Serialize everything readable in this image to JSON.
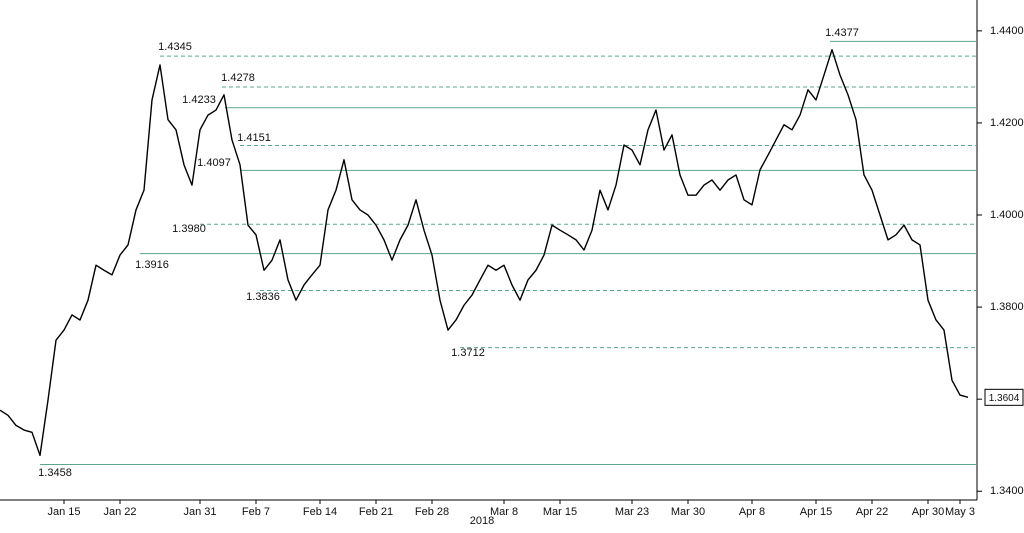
{
  "chart_data": {
    "type": "line",
    "xlabel": "2018",
    "categories": [
      null,
      null,
      null,
      null,
      null,
      null,
      null,
      null,
      "Jan 15",
      null,
      null,
      null,
      null,
      null,
      null,
      "Jan 22",
      null,
      null,
      null,
      null,
      null,
      null,
      null,
      null,
      null,
      "Jan 31",
      null,
      null,
      null,
      null,
      null,
      null,
      "Feb 7",
      null,
      null,
      null,
      null,
      null,
      null,
      null,
      "Feb 14",
      null,
      null,
      null,
      null,
      null,
      null,
      "Feb 21",
      null,
      null,
      null,
      null,
      null,
      null,
      "Feb 28",
      null,
      null,
      null,
      null,
      null,
      null,
      null,
      null,
      "Mar 8",
      null,
      null,
      null,
      null,
      null,
      null,
      "Mar 15",
      null,
      null,
      null,
      null,
      null,
      null,
      null,
      null,
      "Mar 23",
      null,
      null,
      null,
      null,
      null,
      null,
      "Mar 30",
      null,
      null,
      null,
      null,
      null,
      null,
      null,
      "Apr 8",
      null,
      null,
      null,
      null,
      null,
      null,
      null,
      "Apr 15",
      null,
      null,
      null,
      null,
      null,
      null,
      "Apr 22",
      null,
      null,
      null,
      null,
      null,
      null,
      "Apr 30",
      null,
      null,
      null,
      "May 3",
      null
    ],
    "series": [
      {
        "color": "#000000",
        "values": [
          1.3576,
          1.3565,
          1.3543,
          1.3533,
          1.3528,
          1.3478,
          1.3598,
          1.3728,
          1.375,
          1.3783,
          1.3772,
          1.3815,
          1.3891,
          1.388,
          1.387,
          1.3913,
          1.3935,
          1.4011,
          1.4054,
          1.425,
          1.4326,
          1.4207,
          1.4185,
          1.4109,
          1.4065,
          1.4185,
          1.4217,
          1.4228,
          1.4261,
          1.4163,
          1.4109,
          1.3978,
          1.3957,
          1.388,
          1.3902,
          1.3946,
          1.3859,
          1.3815,
          1.3848,
          1.387,
          1.3891,
          1.4011,
          1.4054,
          1.412,
          1.4033,
          1.4011,
          1.4,
          1.3978,
          1.3946,
          1.3902,
          1.3946,
          1.3978,
          1.4033,
          1.3967,
          1.3913,
          1.3815,
          1.375,
          1.3772,
          1.3804,
          1.3826,
          1.3859,
          1.3891,
          1.388,
          1.3891,
          1.3848,
          1.3815,
          1.3859,
          1.388,
          1.3913,
          1.3978,
          1.3967,
          1.3957,
          1.3946,
          1.3924,
          1.3967,
          1.4054,
          1.4011,
          1.4065,
          1.4152,
          1.4141,
          1.4109,
          1.4185,
          1.4228,
          1.4141,
          1.4174,
          1.4087,
          1.4043,
          1.4043,
          1.4065,
          1.4076,
          1.4054,
          1.4076,
          1.4087,
          1.4033,
          1.4022,
          1.4098,
          1.413,
          1.4163,
          1.4196,
          1.4185,
          1.4217,
          1.4272,
          1.425,
          1.4304,
          1.4359,
          1.4304,
          1.4261,
          1.4207,
          1.4087,
          1.4054,
          1.4,
          1.3946,
          1.3957,
          1.3978,
          1.3946,
          1.3935,
          1.3815,
          1.3772,
          1.375,
          1.3641,
          1.3609,
          1.3604
        ]
      }
    ],
    "ylim": [
      1.3381,
      1.4467
    ],
    "yticks": [
      {
        "value": 1.34,
        "label": "1.3400"
      },
      {
        "value": 1.36,
        "label": "1.3600"
      },
      {
        "value": 1.38,
        "label": "1.3800"
      },
      {
        "value": 1.4,
        "label": "1.4000"
      },
      {
        "value": 1.42,
        "label": "1.4200"
      },
      {
        "value": 1.44,
        "label": "1.4400"
      }
    ],
    "level_color": "#5aa88a",
    "levels": [
      {
        "value": 1.4377,
        "label": "1.4377",
        "style": "solid"
      },
      {
        "value": 1.4345,
        "label": "1.4345",
        "style": "dashed"
      },
      {
        "value": 1.4278,
        "label": "1.4278",
        "style": "dashed"
      },
      {
        "value": 1.4233,
        "label": "1.4233",
        "style": "solid"
      },
      {
        "value": 1.4151,
        "label": "1.4151",
        "style": "dashed"
      },
      {
        "value": 1.4097,
        "label": "1.4097",
        "style": "solid"
      },
      {
        "value": 1.398,
        "label": "1.3980",
        "style": "dashed"
      },
      {
        "value": 1.3916,
        "label": "1.3916",
        "style": "solid"
      },
      {
        "value": 1.3836,
        "label": "1.3836",
        "style": "dashed"
      },
      {
        "value": 1.3712,
        "label": "1.3712",
        "style": "dashed"
      },
      {
        "value": 1.3458,
        "label": "1.3458",
        "style": "solid"
      }
    ]
  }
}
